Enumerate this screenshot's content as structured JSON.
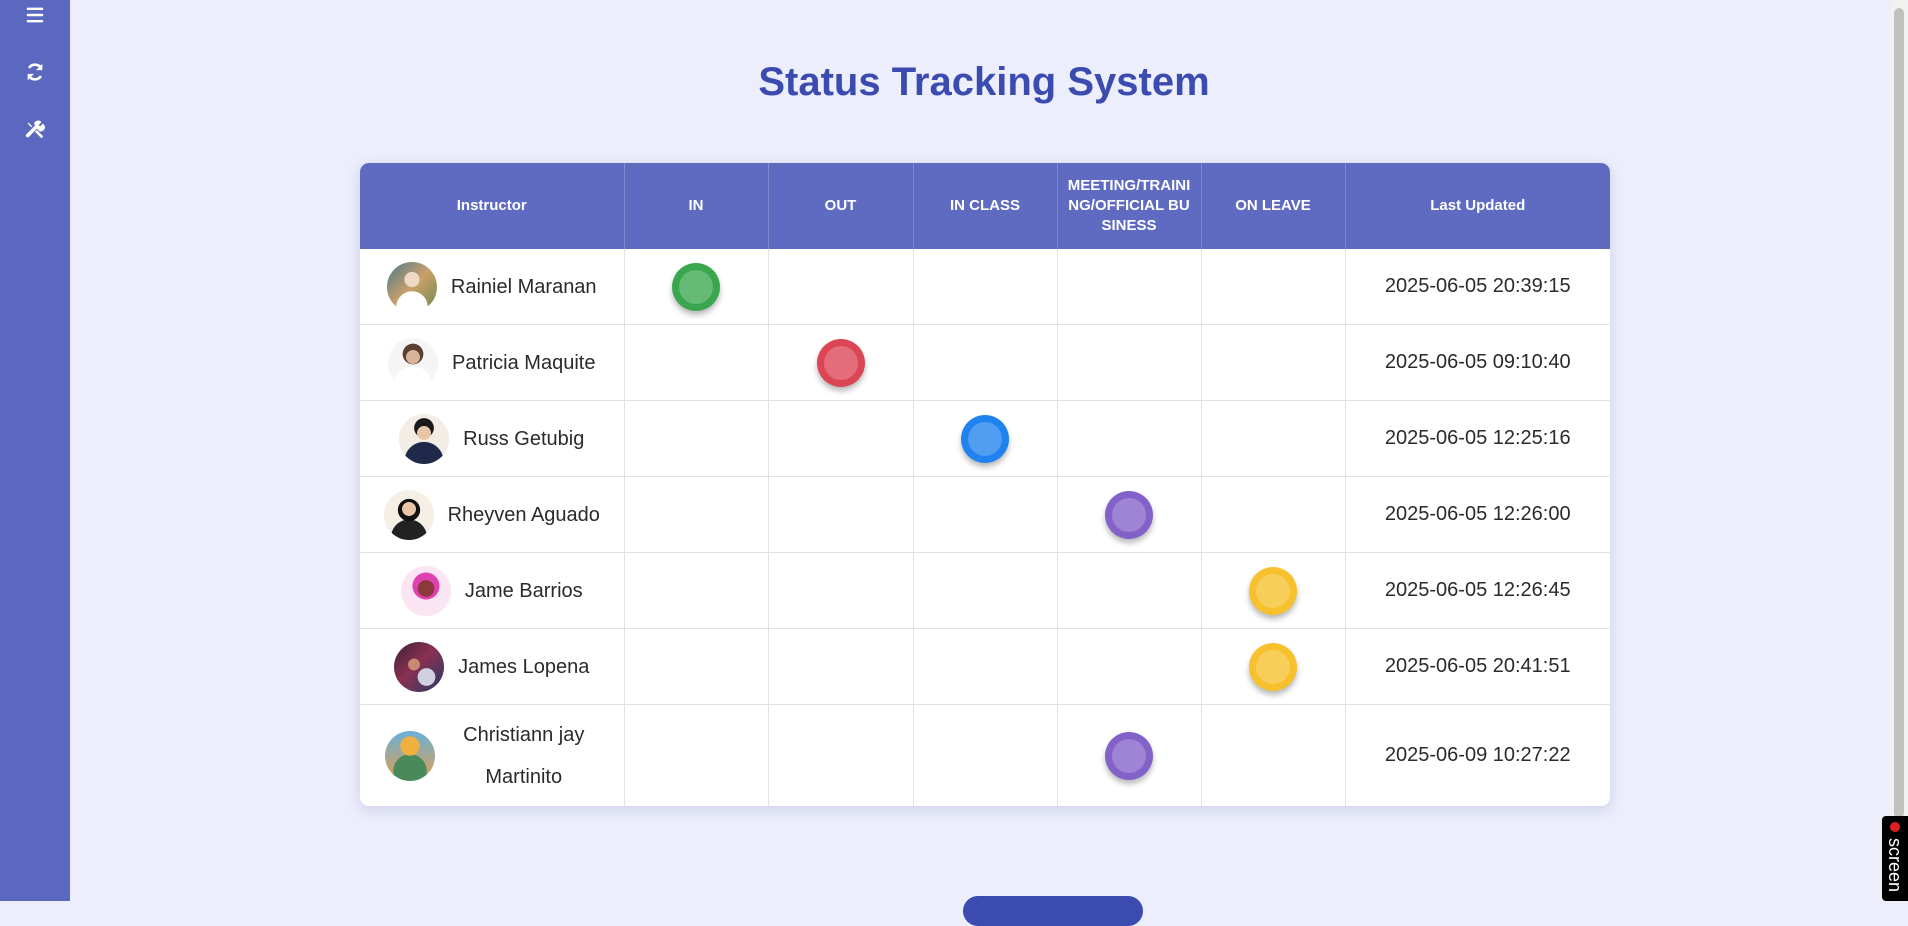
{
  "title": "Status Tracking System",
  "colors": {
    "in": "#3aa74f",
    "out": "#dc4654",
    "in_class": "#1f82ef",
    "meeting": "#8262c9",
    "on_leave": "#f7c12d"
  },
  "columns": {
    "instructor": "Instructor",
    "in": "IN",
    "out": "OUT",
    "in_class": "IN CLASS",
    "meeting": "MEETING/TRAINING/OFFICIAL BUSINESS",
    "on_leave": "ON LEAVE",
    "last_updated": "Last Updated"
  },
  "rows": [
    {
      "name": "Rainiel Maranan",
      "status": "in",
      "updated": "2025-06-05 20:39:15"
    },
    {
      "name": "Patricia Maquite",
      "status": "out",
      "updated": "2025-06-05 09:10:40"
    },
    {
      "name": "Russ Getubig",
      "status": "in_class",
      "updated": "2025-06-05 12:25:16"
    },
    {
      "name": "Rheyven Aguado",
      "status": "meeting",
      "updated": "2025-06-05 12:26:00"
    },
    {
      "name": "Jame Barrios",
      "status": "on_leave",
      "updated": "2025-06-05 12:26:45"
    },
    {
      "name": "James Lopena",
      "status": "on_leave",
      "updated": "2025-06-05 20:41:51"
    },
    {
      "name": "Christiann jay Martinito",
      "status": "meeting",
      "updated": "2025-06-09 10:27:22"
    }
  ],
  "sidebar": {
    "icons": [
      "menu-icon",
      "refresh-icon",
      "tools-icon"
    ]
  },
  "recorder": {
    "label": "screen"
  }
}
